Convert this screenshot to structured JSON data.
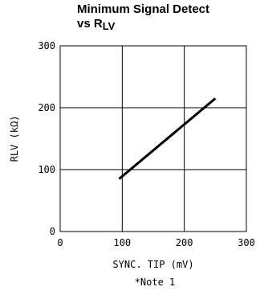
{
  "title_line1": "Minimum Signal Detect",
  "title_line2_main": "vs R",
  "title_line2_sub": "LV",
  "note": "*Note 1",
  "chart_data": {
    "type": "line",
    "xlabel": "SYNC. TIP (mV)",
    "ylabel": "RLV (kΩ)",
    "xlim": [
      0,
      300
    ],
    "ylim": [
      0,
      300
    ],
    "x_ticks": [
      0,
      100,
      200,
      300
    ],
    "y_ticks": [
      0,
      100,
      200,
      300
    ],
    "grid": true,
    "legend": "none",
    "series": [
      {
        "x": [
          95,
          250
        ],
        "y": [
          85,
          215
        ]
      }
    ]
  }
}
